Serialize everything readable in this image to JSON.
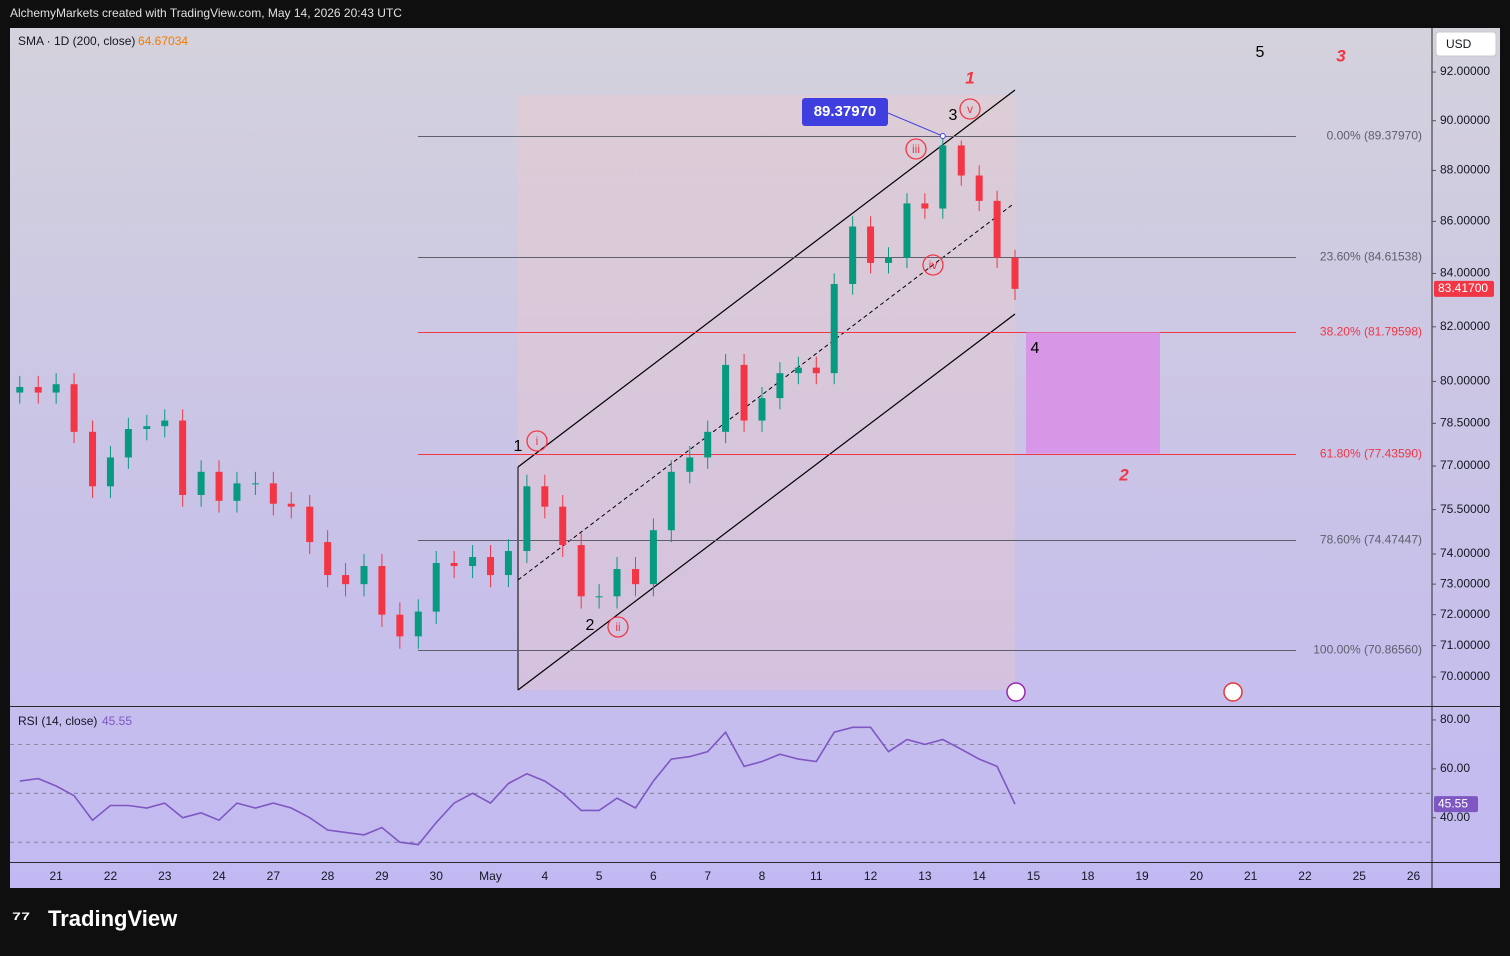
{
  "header": {
    "text": "AlchemyMarkets created with TradingView.com, May 14, 2026 20:43 UTC"
  },
  "logo": "TradingView",
  "chart_data": [
    {
      "type": "candlestick",
      "indicator_label": "SMA · 1D (200, close)",
      "indicator_value": "64.67034",
      "currency": "USD",
      "log_scale": true,
      "grid": false,
      "up_color": "#089981",
      "down_color": "#f23645",
      "categories": [
        "21",
        "22",
        "23",
        "24",
        "27",
        "28",
        "29",
        "30",
        "May",
        "4",
        "5",
        "6",
        "7",
        "8",
        "11",
        "12",
        "13",
        "14",
        "15",
        "18",
        "19",
        "20",
        "21",
        "22",
        "25",
        "26"
      ],
      "xlim": [
        -0.85,
        25.34
      ],
      "ylim": [
        69.09,
        93.85
      ],
      "yticks": [
        {
          "value": 92,
          "label": "92.00000"
        },
        {
          "value": 90,
          "label": "90.00000"
        },
        {
          "value": 88,
          "label": "88.00000"
        },
        {
          "value": 86,
          "label": "86.00000"
        },
        {
          "value": 84,
          "label": "84.00000"
        },
        {
          "value": 82,
          "label": "82.00000"
        },
        {
          "value": 80,
          "label": "80.00000"
        },
        {
          "value": 78.5,
          "label": "78.50000"
        },
        {
          "value": 77,
          "label": "77.00000"
        },
        {
          "value": 75.5,
          "label": "75.50000"
        },
        {
          "value": 74,
          "label": "74.00000"
        },
        {
          "value": 73,
          "label": "73.00000"
        },
        {
          "value": 72,
          "label": "72.00000"
        },
        {
          "value": 71,
          "label": "71.00000"
        },
        {
          "value": 70,
          "label": "70.00000"
        }
      ],
      "x": [
        -0.67,
        -0.33,
        0,
        0.33,
        0.67,
        1,
        1.33,
        1.67,
        2,
        2.33,
        2.67,
        3,
        3.33,
        3.67,
        4,
        4.33,
        4.67,
        5,
        5.33,
        5.67,
        6,
        6.33,
        6.67,
        7,
        7.33,
        7.67,
        8,
        8.33,
        8.67,
        9,
        9.33,
        9.67,
        10,
        10.33,
        10.67,
        11,
        11.33,
        11.67,
        12,
        12.33,
        12.67,
        13,
        13.33,
        13.67,
        14,
        14.33,
        14.67,
        15,
        15.33,
        15.67,
        16,
        16.33,
        16.67,
        17,
        17.33,
        17.66
      ],
      "open": [
        79.6,
        79.8,
        79.6,
        79.9,
        78.2,
        76.3,
        77.3,
        78.3,
        78.4,
        78.6,
        76.0,
        76.8,
        75.8,
        76.4,
        76.4,
        75.7,
        75.6,
        74.4,
        73.3,
        73.0,
        73.6,
        72.0,
        71.3,
        72.1,
        73.7,
        73.6,
        73.9,
        73.3,
        74.1,
        76.3,
        75.6,
        74.3,
        72.6,
        72.6,
        73.5,
        73.0,
        74.8,
        76.8,
        77.3,
        78.2,
        80.6,
        78.6,
        79.4,
        80.3,
        80.5,
        80.3,
        83.6,
        85.8,
        84.4,
        84.6,
        86.7,
        86.5,
        89.0,
        87.8,
        86.8,
        84.6
      ],
      "high": [
        80.2,
        80.2,
        80.3,
        80.3,
        78.6,
        77.7,
        78.7,
        78.8,
        79.0,
        79.0,
        77.2,
        77.2,
        76.8,
        76.8,
        76.8,
        76.1,
        76.0,
        74.8,
        73.7,
        74.0,
        74.0,
        72.4,
        72.5,
        74.1,
        74.1,
        74.3,
        74.3,
        74.5,
        76.7,
        76.7,
        76.0,
        74.7,
        73.0,
        73.9,
        73.9,
        75.2,
        77.2,
        77.7,
        78.6,
        81.0,
        81.0,
        79.8,
        80.7,
        80.9,
        80.9,
        84.0,
        86.2,
        86.2,
        85.0,
        87.1,
        87.1,
        89.3797,
        89.2,
        88.2,
        87.2,
        84.9
      ],
      "low": [
        79.2,
        79.2,
        79.2,
        77.8,
        75.9,
        75.9,
        76.9,
        77.9,
        78.0,
        75.6,
        75.6,
        75.4,
        75.4,
        76.0,
        75.3,
        75.2,
        74.0,
        72.9,
        72.6,
        72.6,
        71.6,
        70.9,
        70.9,
        71.7,
        73.2,
        73.2,
        72.9,
        72.9,
        73.7,
        75.2,
        73.9,
        72.2,
        72.2,
        72.2,
        72.6,
        72.6,
        74.4,
        76.4,
        76.9,
        77.8,
        78.2,
        78.2,
        79.0,
        79.9,
        79.9,
        79.9,
        83.2,
        84.0,
        84.0,
        84.2,
        86.1,
        86.1,
        87.4,
        86.4,
        84.2,
        83.0
      ],
      "close": [
        79.8,
        79.6,
        79.9,
        78.2,
        76.3,
        77.3,
        78.3,
        78.4,
        78.6,
        76.0,
        76.8,
        75.8,
        76.4,
        76.4,
        75.7,
        75.6,
        74.4,
        73.3,
        73.0,
        73.6,
        72.0,
        71.3,
        72.1,
        73.7,
        73.6,
        73.9,
        73.3,
        74.1,
        76.3,
        75.6,
        74.3,
        72.6,
        72.6,
        73.5,
        73.0,
        74.8,
        76.8,
        77.3,
        78.2,
        80.6,
        78.6,
        79.4,
        80.3,
        80.5,
        80.3,
        83.6,
        85.8,
        84.4,
        84.6,
        86.7,
        86.5,
        89.0,
        87.8,
        86.8,
        84.6,
        83.417
      ],
      "last_price": {
        "value": 83.417,
        "label": "83.41700"
      },
      "callout": {
        "value": 89.3797,
        "label": "89.37970"
      },
      "fib_levels": [
        {
          "value": 89.3797,
          "label": "0.00% (89.37970)",
          "color": "#5d606b"
        },
        {
          "value": 84.61538,
          "label": "23.60% (84.61538)",
          "color": "#5d606b"
        },
        {
          "value": 81.79598,
          "label": "38.20% (81.79598)",
          "color": "#f23645"
        },
        {
          "value": 77.4359,
          "label": "61.80% (77.43590)",
          "color": "#f23645"
        },
        {
          "value": 74.47447,
          "label": "78.60% (74.47447)",
          "color": "#5d606b"
        },
        {
          "value": 70.8656,
          "label": "100.00% (70.86560)",
          "color": "#5d606b"
        }
      ],
      "annotations": [
        "1",
        "i",
        "2",
        "ii",
        "3",
        "iii",
        "iv",
        "v",
        "4",
        "5",
        "1",
        "2",
        "3"
      ]
    },
    {
      "type": "line",
      "label": "RSI (14, close)",
      "value_label": "45.55",
      "color": "#7e57c2",
      "ylim": [
        21.9,
        85.3
      ],
      "yticks": [
        {
          "value": 80,
          "label": "80.00"
        },
        {
          "value": 60,
          "label": "60.00"
        },
        {
          "value": 40,
          "label": "40.00"
        }
      ],
      "bands": [
        30,
        50,
        70
      ],
      "x": [
        -0.67,
        -0.33,
        0,
        0.33,
        0.67,
        1,
        1.33,
        1.67,
        2,
        2.33,
        2.67,
        3,
        3.33,
        3.67,
        4,
        4.33,
        4.67,
        5,
        5.33,
        5.67,
        6,
        6.33,
        6.67,
        7,
        7.33,
        7.67,
        8,
        8.33,
        8.67,
        9,
        9.33,
        9.67,
        10,
        10.33,
        10.67,
        11,
        11.33,
        11.67,
        12,
        12.33,
        12.67,
        13,
        13.33,
        13.67,
        14,
        14.33,
        14.67,
        15,
        15.33,
        15.67,
        16,
        16.33,
        16.67,
        17,
        17.33,
        17.66
      ],
      "values": [
        55,
        56,
        53,
        49,
        39,
        45,
        45,
        44,
        46,
        40,
        42,
        39,
        46,
        44,
        46,
        44,
        40,
        35,
        34,
        33,
        36,
        30,
        29,
        38,
        46,
        50,
        46,
        54,
        58,
        55,
        50,
        43,
        43,
        48,
        44,
        55,
        64,
        65,
        67,
        75,
        61,
        63,
        66,
        64,
        63,
        75,
        77,
        77,
        67,
        72,
        70,
        72,
        68,
        64,
        61,
        45.55
      ]
    }
  ]
}
